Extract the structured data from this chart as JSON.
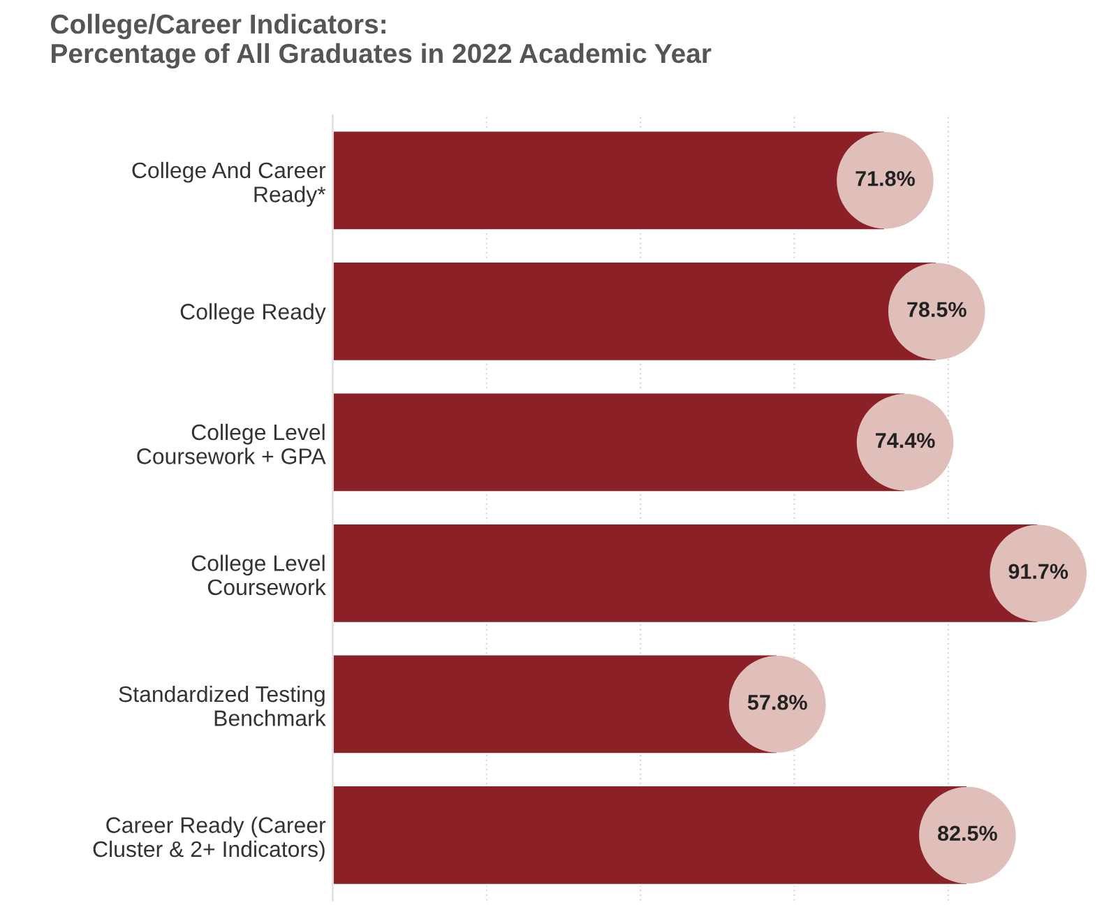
{
  "chart_data": {
    "type": "bar",
    "orientation": "horizontal",
    "title": "College/Career Indicators:\nPercentage of All Graduates in 2022 Academic Year",
    "categories": [
      "College And Career\nReady*",
      "College Ready",
      "College Level\nCoursework + GPA",
      "College Level\nCoursework",
      "Standardized Testing\nBenchmark",
      "Career Ready (Career\nCluster & 2+ Indicators)"
    ],
    "values": [
      71.8,
      78.5,
      74.4,
      91.7,
      57.8,
      82.5
    ],
    "value_labels": [
      "71.8%",
      "78.5%",
      "74.4%",
      "91.7%",
      "57.8%",
      "82.5%"
    ],
    "color": "#8b2027",
    "xticks": [
      {
        "value": 0,
        "label": null
      },
      {
        "value": 20,
        "label": null
      },
      {
        "value": 40,
        "label": null
      },
      {
        "value": 60,
        "label": null
      },
      {
        "value": 80,
        "label": null
      }
    ],
    "grid": "x",
    "tick_labels": "y"
  }
}
